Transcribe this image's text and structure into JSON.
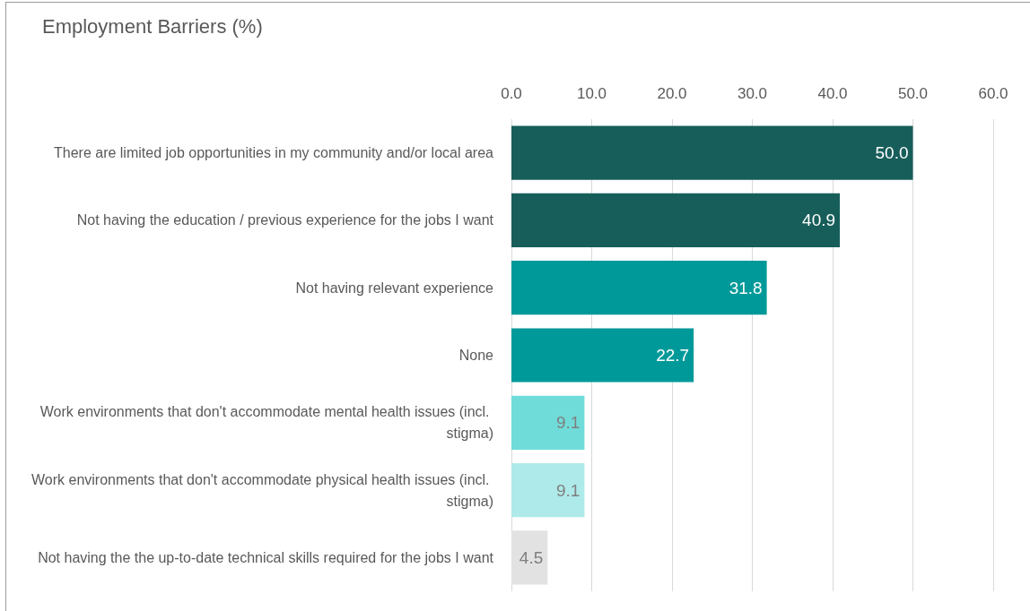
{
  "chart_data": {
    "type": "bar",
    "orientation": "horizontal",
    "title": "Employment Barriers (%)",
    "categories": [
      "There are limited job opportunities in my community and/or local area",
      "Not having the education / previous experience for the jobs I want",
      "Not having relevant experience",
      "None",
      "Work environments that don't accommodate mental health issues (incl. stigma)",
      "Work environments that don't accommodate physical health issues (incl. stigma)",
      "Not having the the up-to-date technical skills required for the jobs I want"
    ],
    "values": [
      50.0,
      40.9,
      31.8,
      22.7,
      9.1,
      9.1,
      4.5
    ],
    "colors": [
      "#175e5a",
      "#175e5a",
      "#009999",
      "#009999",
      "#70dcd9",
      "#aeeae9",
      "#e2e2e2"
    ],
    "xlim": [
      0,
      60
    ],
    "xticks": [
      {
        "value": 0,
        "label": "0.0"
      },
      {
        "value": 10,
        "label": "10.0"
      },
      {
        "value": 20,
        "label": "20.0"
      },
      {
        "value": 30,
        "label": "30.0"
      },
      {
        "value": 40,
        "label": "40.0"
      },
      {
        "value": 50,
        "label": "50.0"
      },
      {
        "value": 60,
        "label": "60.0"
      }
    ],
    "value_labels": [
      "50.0",
      "40.9",
      "31.8",
      "22.7",
      "9.1",
      "9.1",
      "4.5"
    ],
    "grid": "x"
  }
}
